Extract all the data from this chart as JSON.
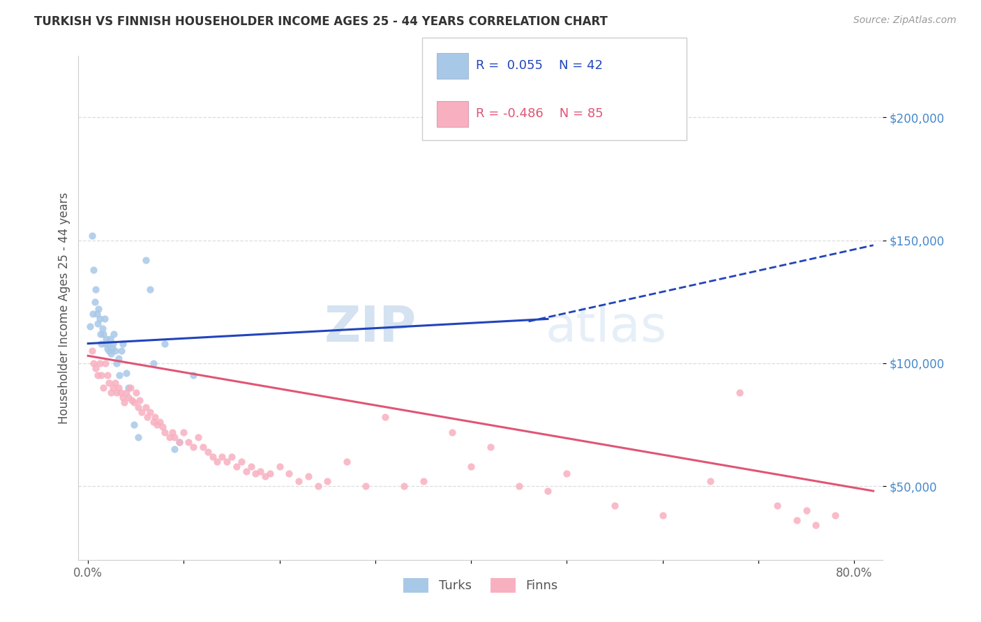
{
  "title": "TURKISH VS FINNISH HOUSEHOLDER INCOME AGES 25 - 44 YEARS CORRELATION CHART",
  "source": "Source: ZipAtlas.com",
  "ylabel": "Householder Income Ages 25 - 44 years",
  "xlim": [
    -0.01,
    0.83
  ],
  "ylim": [
    20000,
    225000
  ],
  "ytick_positions": [
    50000,
    100000,
    150000,
    200000
  ],
  "ytick_labels": [
    "$50,000",
    "$100,000",
    "$150,000",
    "$200,000"
  ],
  "turks_color": "#a8c8e8",
  "finns_color": "#f8b0c0",
  "turks_line_color": "#2244bb",
  "finns_line_color": "#e05575",
  "turks_x": [
    0.002,
    0.004,
    0.005,
    0.006,
    0.007,
    0.008,
    0.009,
    0.01,
    0.011,
    0.012,
    0.013,
    0.014,
    0.015,
    0.016,
    0.017,
    0.018,
    0.019,
    0.02,
    0.021,
    0.022,
    0.023,
    0.024,
    0.025,
    0.026,
    0.027,
    0.028,
    0.03,
    0.032,
    0.033,
    0.035,
    0.036,
    0.04,
    0.042,
    0.048,
    0.052,
    0.06,
    0.065,
    0.068,
    0.08,
    0.09,
    0.095,
    0.11
  ],
  "turks_y": [
    115000,
    152000,
    120000,
    138000,
    125000,
    130000,
    120000,
    116000,
    122000,
    118000,
    112000,
    108000,
    114000,
    112000,
    118000,
    108000,
    110000,
    106000,
    108000,
    105000,
    110000,
    104000,
    106000,
    108000,
    112000,
    105000,
    100000,
    102000,
    95000,
    105000,
    108000,
    96000,
    90000,
    75000,
    70000,
    142000,
    130000,
    100000,
    108000,
    65000,
    68000,
    95000
  ],
  "finns_x": [
    0.004,
    0.006,
    0.008,
    0.01,
    0.012,
    0.014,
    0.016,
    0.018,
    0.02,
    0.022,
    0.024,
    0.026,
    0.028,
    0.03,
    0.032,
    0.034,
    0.036,
    0.038,
    0.04,
    0.042,
    0.044,
    0.046,
    0.048,
    0.05,
    0.052,
    0.054,
    0.056,
    0.06,
    0.062,
    0.065,
    0.068,
    0.07,
    0.072,
    0.075,
    0.078,
    0.08,
    0.085,
    0.088,
    0.09,
    0.095,
    0.1,
    0.105,
    0.11,
    0.115,
    0.12,
    0.125,
    0.13,
    0.135,
    0.14,
    0.145,
    0.15,
    0.155,
    0.16,
    0.165,
    0.17,
    0.175,
    0.18,
    0.185,
    0.19,
    0.2,
    0.21,
    0.22,
    0.23,
    0.24,
    0.25,
    0.27,
    0.29,
    0.31,
    0.33,
    0.35,
    0.38,
    0.4,
    0.42,
    0.45,
    0.48,
    0.5,
    0.55,
    0.6,
    0.65,
    0.68,
    0.72,
    0.75,
    0.78,
    0.74,
    0.76
  ],
  "finns_y": [
    105000,
    100000,
    98000,
    95000,
    100000,
    95000,
    90000,
    100000,
    95000,
    92000,
    88000,
    90000,
    92000,
    88000,
    90000,
    88000,
    86000,
    84000,
    88000,
    86000,
    90000,
    85000,
    84000,
    88000,
    82000,
    85000,
    80000,
    82000,
    78000,
    80000,
    76000,
    78000,
    75000,
    76000,
    74000,
    72000,
    70000,
    72000,
    70000,
    68000,
    72000,
    68000,
    66000,
    70000,
    66000,
    64000,
    62000,
    60000,
    62000,
    60000,
    62000,
    58000,
    60000,
    56000,
    58000,
    55000,
    56000,
    54000,
    55000,
    58000,
    55000,
    52000,
    54000,
    50000,
    52000,
    60000,
    50000,
    78000,
    50000,
    52000,
    72000,
    58000,
    66000,
    50000,
    48000,
    55000,
    42000,
    38000,
    52000,
    88000,
    42000,
    40000,
    38000,
    36000,
    34000
  ],
  "watermark_zip": "ZIP",
  "watermark_atlas": "atlas",
  "background_color": "#ffffff",
  "grid_color": "#dddddd"
}
